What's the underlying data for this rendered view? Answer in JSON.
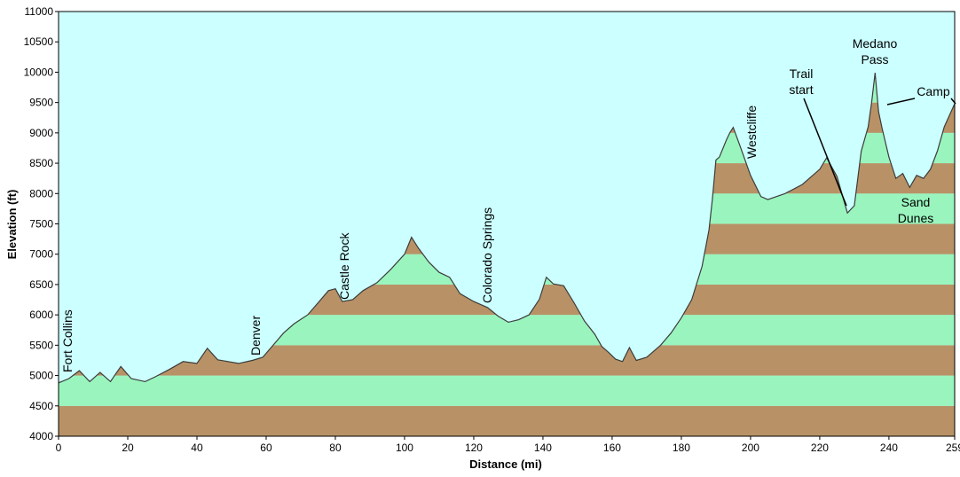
{
  "colors": {
    "sky": "#ccffff",
    "band_green": "#99f5bd",
    "band_brown": "#b89266",
    "profile_line": "#3c3c3c",
    "axis": "#000000"
  },
  "chart_data": {
    "type": "area",
    "xlabel": "Distance   (mi)",
    "ylabel": "Elevation (ft)",
    "xlim": [
      0,
      259
    ],
    "ylim": [
      4000,
      11000
    ],
    "xticks": [
      0,
      20,
      40,
      60,
      80,
      100,
      120,
      140,
      160,
      180,
      200,
      220,
      240,
      259
    ],
    "yticks": [
      4000,
      4500,
      5000,
      5500,
      6000,
      6500,
      7000,
      7500,
      8000,
      8500,
      9000,
      9500,
      10000,
      10500,
      11000
    ],
    "band_step": 500,
    "grid": false,
    "series": [
      {
        "x": [
          0,
          3,
          6,
          9,
          12,
          15,
          18,
          21,
          25,
          28,
          32,
          36,
          40,
          43,
          46,
          49,
          52,
          56,
          59,
          62,
          65,
          68,
          72,
          75,
          78,
          80,
          82,
          85,
          88,
          92,
          96,
          100,
          102,
          104,
          107,
          110,
          113,
          116,
          120,
          124,
          127,
          130,
          133,
          136,
          139,
          141,
          143,
          146,
          149,
          152,
          155,
          157,
          159,
          161,
          163,
          165,
          167,
          170,
          174,
          177,
          180,
          183,
          186,
          188,
          189,
          190,
          191,
          193,
          194,
          195,
          197,
          200,
          203,
          205,
          210,
          215,
          220,
          222,
          225,
          228,
          230,
          232,
          234,
          235,
          236,
          237,
          238,
          240,
          242,
          244,
          246,
          248,
          250,
          252,
          254,
          256,
          259
        ],
        "y": [
          4880,
          4950,
          5080,
          4900,
          5050,
          4900,
          5150,
          4950,
          4900,
          4980,
          5100,
          5230,
          5200,
          5450,
          5260,
          5230,
          5200,
          5250,
          5300,
          5500,
          5700,
          5850,
          6000,
          6200,
          6400,
          6430,
          6220,
          6250,
          6400,
          6530,
          6750,
          7000,
          7280,
          7100,
          6870,
          6700,
          6620,
          6350,
          6220,
          6120,
          5980,
          5880,
          5920,
          6000,
          6260,
          6620,
          6510,
          6480,
          6200,
          5900,
          5680,
          5480,
          5380,
          5270,
          5230,
          5460,
          5250,
          5300,
          5500,
          5700,
          5950,
          6250,
          6800,
          7400,
          7920,
          8550,
          8600,
          8880,
          9000,
          9090,
          8780,
          8300,
          7950,
          7900,
          8000,
          8150,
          8400,
          8590,
          8280,
          7680,
          7800,
          8700,
          9100,
          9500,
          9990,
          9350,
          9080,
          8600,
          8250,
          8330,
          8100,
          8300,
          8250,
          8400,
          8700,
          9100,
          9480
        ]
      }
    ],
    "annotations": {
      "fort_collins": "Fort Collins",
      "denver": "Denver",
      "castle_rock": "Castle Rock",
      "colorado_springs": "Colorado Springs",
      "westcliffe": "Westcliffe",
      "trail_start_1": "Trail",
      "trail_start_2": "start",
      "medano_1": "Medano",
      "medano_2": "Pass",
      "camp": "Camp",
      "sand_1": "Sand",
      "sand_2": "Dunes"
    }
  }
}
